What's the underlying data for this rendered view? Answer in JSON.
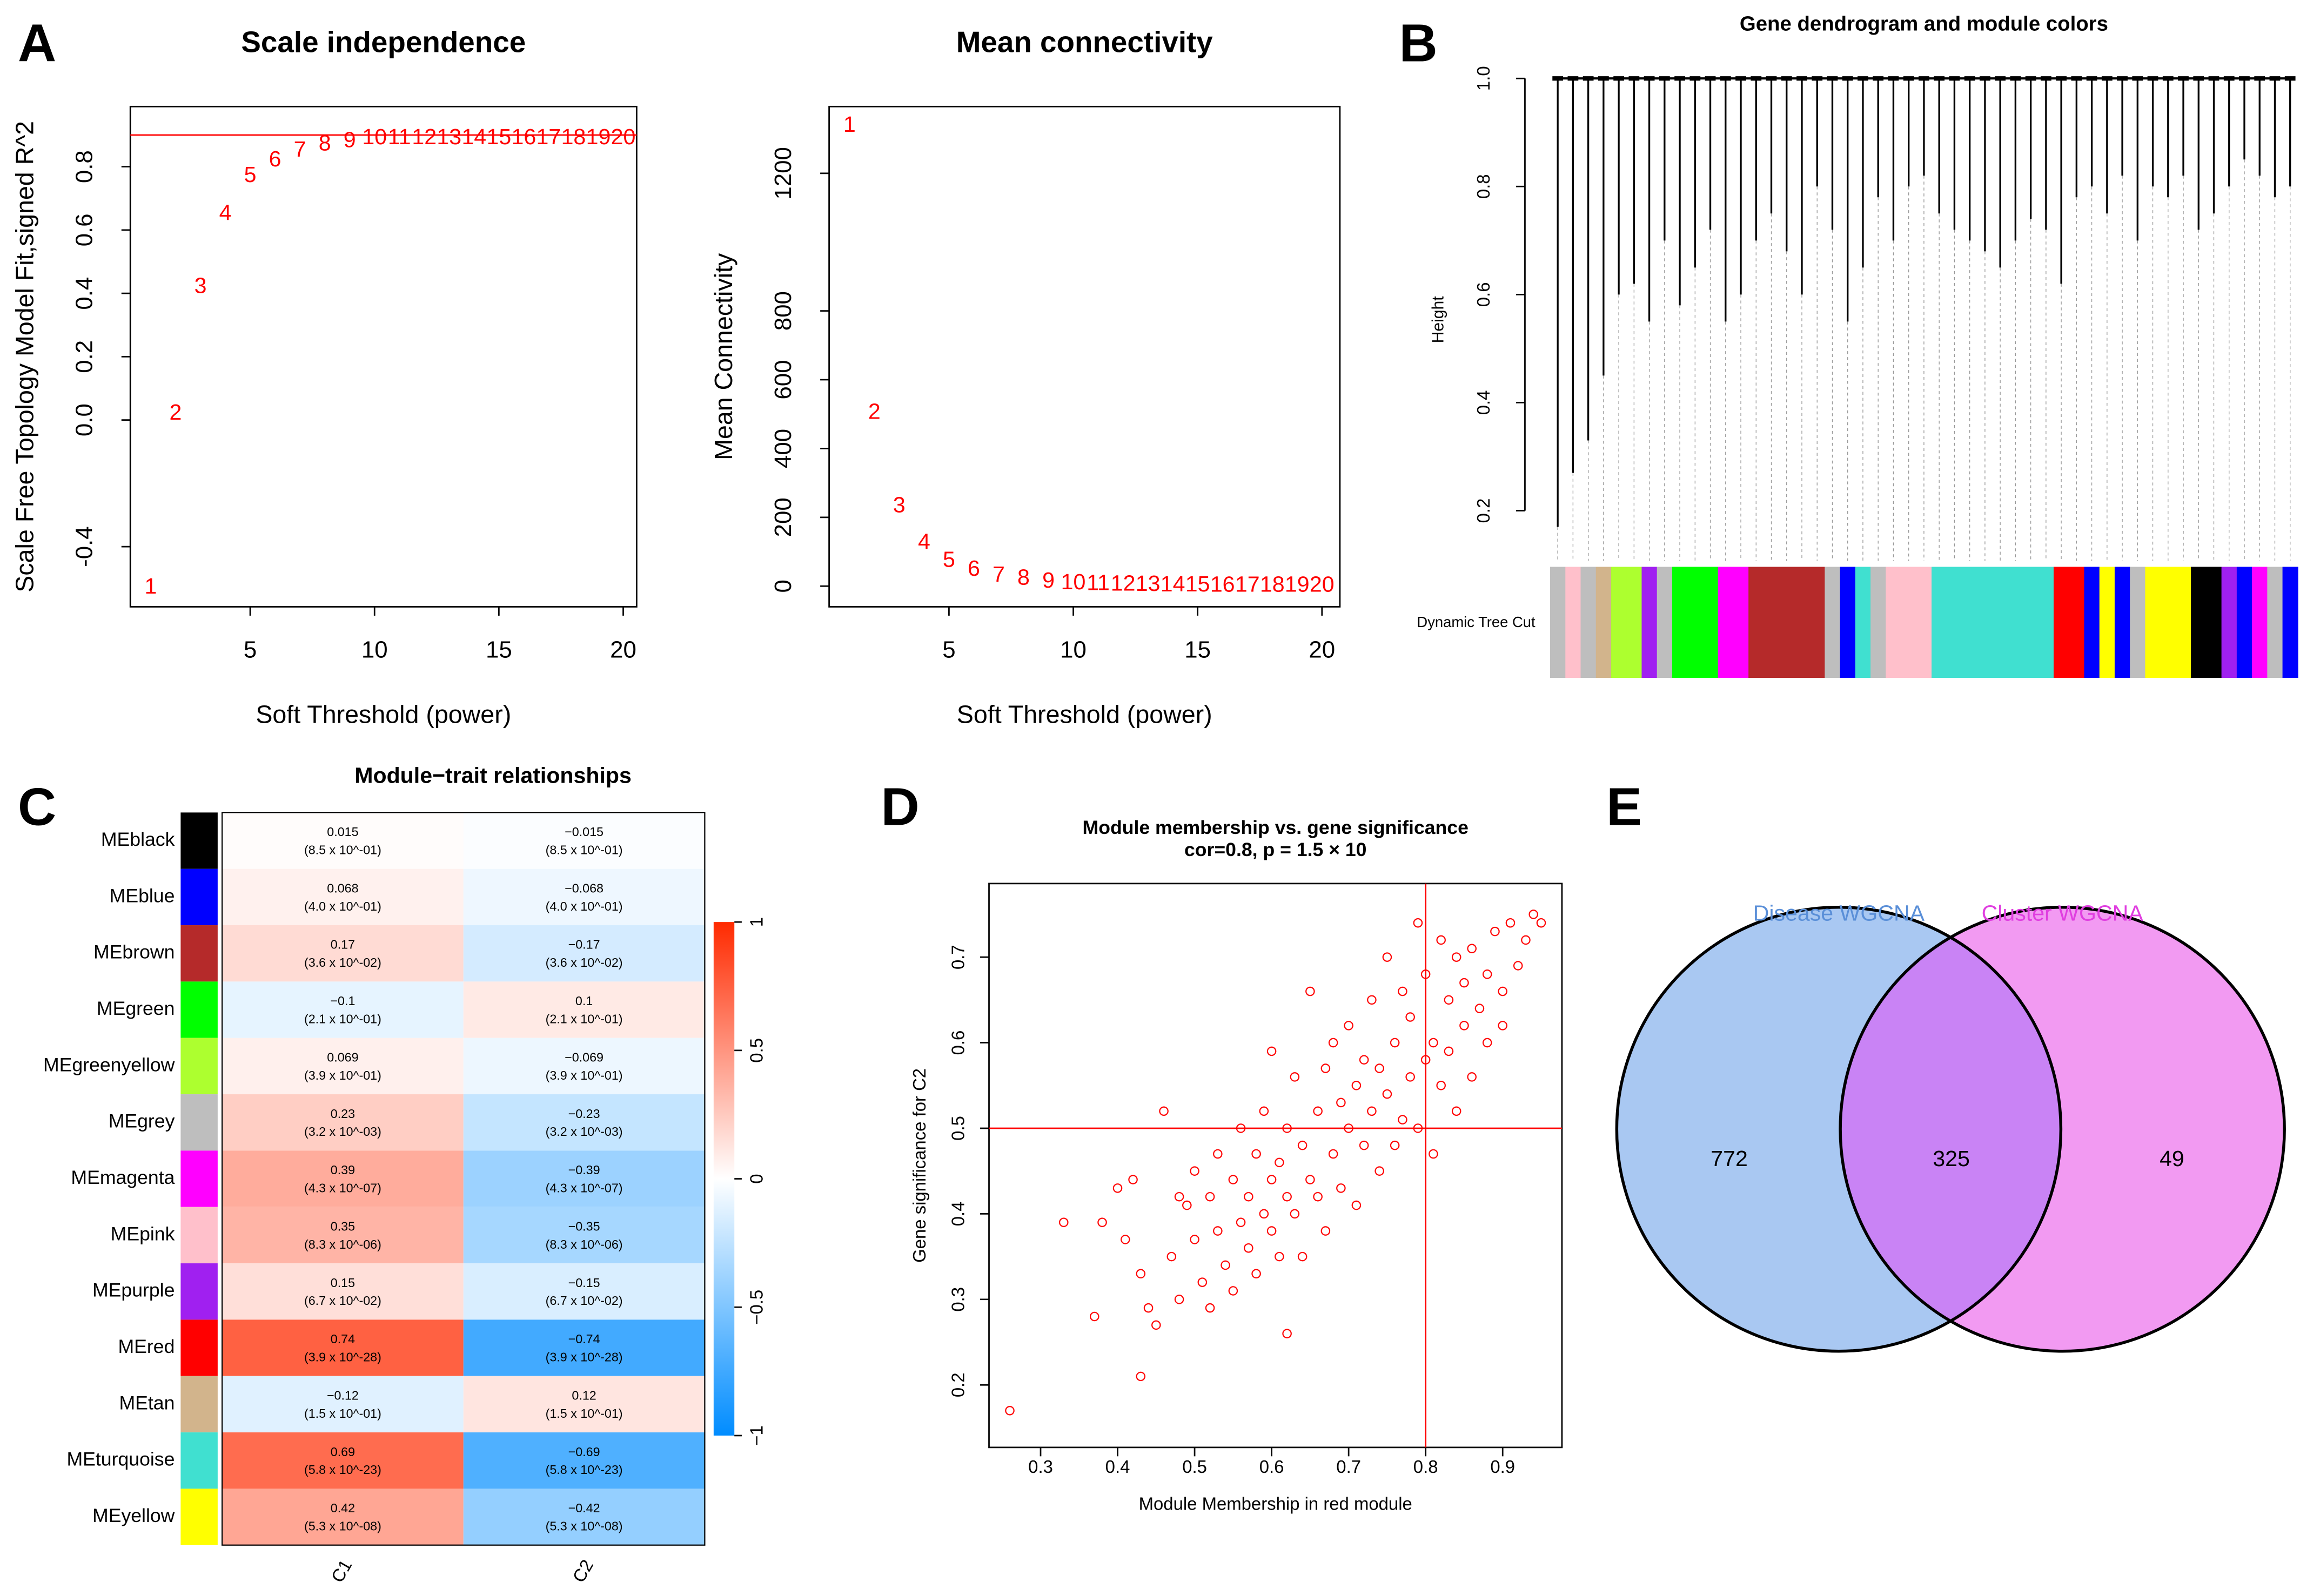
{
  "chart_data": [
    {
      "type": "scatter",
      "panel": "A",
      "title": "Scale independence",
      "x_label": "Soft Threshold (power)",
      "y_label": "Scale Free Topology Model Fit,signed R^2",
      "marker": "label",
      "color": "#ff0000",
      "x": [
        1,
        2,
        3,
        4,
        5,
        6,
        7,
        8,
        9,
        10,
        11,
        12,
        13,
        14,
        15,
        16,
        17,
        18,
        19,
        20
      ],
      "y": [
        -0.53,
        0.02,
        0.42,
        0.65,
        0.77,
        0.82,
        0.85,
        0.87,
        0.88,
        0.89,
        0.89,
        0.89,
        0.89,
        0.89,
        0.89,
        0.89,
        0.89,
        0.89,
        0.89,
        0.89
      ],
      "hline": 0.9,
      "xlim": [
        0.18,
        20.54
      ],
      "ylim": [
        -0.59,
        0.99
      ],
      "xticks": [
        5,
        10,
        15,
        20
      ],
      "yticks": [
        -0.4,
        {
          "value": 0,
          "label": "0.0"
        },
        0.2,
        0.4,
        0.6,
        0.8
      ]
    },
    {
      "type": "scatter",
      "title": "Mean connectivity",
      "x_label": "Soft Threshold (power)",
      "y_label": "Mean Connectivity",
      "marker": "label",
      "color": "#ff0000",
      "x": [
        1,
        2,
        3,
        4,
        5,
        6,
        7,
        8,
        9,
        10,
        11,
        12,
        13,
        14,
        15,
        16,
        17,
        18,
        19,
        20
      ],
      "y": [
        1338,
        503,
        232,
        125,
        73,
        47,
        30,
        21,
        13,
        8,
        6,
        4,
        3,
        2,
        2,
        1,
        1,
        1,
        1,
        1
      ],
      "xlim": [
        0.18,
        20.72
      ],
      "ylim": [
        -60,
        1394
      ],
      "xticks": [
        5,
        10,
        15,
        20
      ],
      "yticks": [
        0,
        200,
        400,
        600,
        800,
        1200
      ]
    },
    {
      "type": "dendrogram",
      "panel": "B",
      "title": "Gene dendrogram and module colors",
      "y_label": "Height",
      "colorbar_label": "Dynamic Tree Cut",
      "ylim": [
        0.107,
        1.0
      ],
      "yticks": [
        0.2,
        0.4,
        0.6,
        0.8,
        {
          "value": 1,
          "label": "1.0"
        }
      ],
      "leaf_heights": [
        0.17,
        0.27,
        0.33,
        0.45,
        0.6,
        0.62,
        0.55,
        0.7,
        0.58,
        0.65,
        0.72,
        0.55,
        0.6,
        0.7,
        0.75,
        0.68,
        0.6,
        0.8,
        0.72,
        0.55,
        0.65,
        0.78,
        0.7,
        0.8,
        0.82,
        0.75,
        0.72,
        0.7,
        0.68,
        0.65,
        0.7,
        0.74,
        0.72,
        0.62,
        0.78,
        0.8,
        0.75,
        0.82,
        0.7,
        0.8,
        0.78,
        0.82,
        0.72,
        0.75,
        0.8,
        0.85,
        0.82,
        0.78,
        0.8
      ],
      "leaf_colors": [
        "#bebebe",
        "#ffc0cb",
        "#bebebe",
        "#d2b48c",
        "#adff2f",
        "#adff2f",
        "#a020f0",
        "#bebebe",
        "#00ff00",
        "#00ff00",
        "#00ff00",
        "#ff00ff",
        "#ff00ff",
        "#b52a2a",
        "#b52a2a",
        "#b52a2a",
        "#b52a2a",
        "#b52a2a",
        "#bebebe",
        "#0000ff",
        "#40e0d0",
        "#bebebe",
        "#ffc0cb",
        "#ffc0cb",
        "#ffc0cb",
        "#40e0d0",
        "#40e0d0",
        "#40e0d0",
        "#40e0d0",
        "#40e0d0",
        "#40e0d0",
        "#40e0d0",
        "#40e0d0",
        "#ff0000",
        "#ff0000",
        "#0000ff",
        "#ffff00",
        "#0000ff",
        "#bebebe",
        "#ffff00",
        "#ffff00",
        "#ffff00",
        "#000000",
        "#000000",
        "#a020f0",
        "#0000ff",
        "#ff00ff",
        "#bebebe",
        "#0000ff"
      ]
    },
    {
      "type": "heatmap",
      "panel": "C",
      "title": "Module−trait relationships",
      "categories": [
        "MEblack",
        "MEblue",
        "MEbrown",
        "MEgreen",
        "MEgreenyellow",
        "MEgrey",
        "MEmagenta",
        "MEpink",
        "MEpurple",
        "MEred",
        "MEtan",
        "MEturquoise",
        "MEyellow"
      ],
      "module_colors": [
        "#000000",
        "#0000ff",
        "#b52a2a",
        "#00ff00",
        "#adff2f",
        "#bebebe",
        "#ff00ff",
        "#ffc0cb",
        "#a020f0",
        "#ff0000",
        "#d2b48c",
        "#40e0d0",
        "#ffff00"
      ],
      "series": [
        {
          "name": "C1",
          "values": [
            0.015,
            0.068,
            0.17,
            -0.1,
            0.069,
            0.23,
            0.39,
            0.35,
            0.15,
            0.74,
            -0.12,
            0.69,
            0.42
          ],
          "value_labels": [
            "0.015",
            "0.068",
            "0.17",
            "−0.1",
            "0.069",
            "0.23",
            "0.39",
            "0.35",
            "0.15",
            "0.74",
            "−0.12",
            "0.69",
            "0.42"
          ],
          "pvalues": [
            0.85,
            0.4,
            0.036,
            0.21,
            0.39,
            0.0032,
            4.3e-07,
            8.3e-06,
            0.067,
            3.9e-28,
            0.15,
            5.8e-23,
            5.3e-08
          ],
          "pvalue_labels": [
            "(8.5 x 10^-01)",
            "(4.0 x 10^-01)",
            "(3.6 x 10^-02)",
            "(2.1 x 10^-01)",
            "(3.9 x 10^-01)",
            "(3.2 x 10^-03)",
            "(4.3 x 10^-07)",
            "(8.3 x 10^-06)",
            "(6.7 x 10^-02)",
            "(3.9 x 10^-28)",
            "(1.5 x 10^-01)",
            "(5.8 x 10^-23)",
            "(5.3 x 10^-08)"
          ]
        },
        {
          "name": "C2",
          "values": [
            -0.015,
            -0.068,
            -0.17,
            0.1,
            -0.069,
            -0.23,
            -0.39,
            -0.35,
            -0.15,
            -0.74,
            0.12,
            -0.69,
            -0.42
          ],
          "value_labels": [
            "−0.015",
            "−0.068",
            "−0.17",
            "0.1",
            "−0.069",
            "−0.23",
            "−0.39",
            "−0.35",
            "−0.15",
            "−0.74",
            "0.12",
            "−0.69",
            "−0.42"
          ],
          "pvalues": [
            0.85,
            0.4,
            0.036,
            0.21,
            0.39,
            0.0032,
            4.3e-07,
            8.3e-06,
            0.067,
            3.9e-28,
            0.15,
            5.8e-23,
            5.3e-08
          ],
          "pvalue_labels": [
            "(8.5 x 10^-01)",
            "(4.0 x 10^-01)",
            "(3.6 x 10^-02)",
            "(2.1 x 10^-01)",
            "(3.9 x 10^-01)",
            "(3.2 x 10^-03)",
            "(4.3 x 10^-07)",
            "(8.3 x 10^-06)",
            "(6.7 x 10^-02)",
            "(3.9 x 10^-28)",
            "(1.5 x 10^-01)",
            "(5.8 x 10^-23)",
            "(5.3 x 10^-08)"
          ]
        }
      ],
      "colorscale": [
        "#008cff",
        "#ffffff",
        "#ff2a00"
      ],
      "zlim": [
        -1,
        1
      ],
      "zticks": [
        {
          "value": -1,
          "label": "−1"
        },
        {
          "value": -0.5,
          "label": "−0.5"
        },
        0,
        0.5,
        1
      ]
    },
    {
      "type": "scatter",
      "panel": "D",
      "title": "Module membership vs. gene significance",
      "subtitle": "cor=0.8, p = 1.5 × 10",
      "x_label": "Module Membership in red module",
      "y_label": "Gene significance for  C2",
      "marker": "circle",
      "color": "#ff0000",
      "x": [
        0.26,
        0.33,
        0.37,
        0.38,
        0.4,
        0.41,
        0.42,
        0.43,
        0.43,
        0.44,
        0.45,
        0.46,
        0.47,
        0.48,
        0.48,
        0.49,
        0.5,
        0.5,
        0.51,
        0.52,
        0.52,
        0.53,
        0.53,
        0.54,
        0.55,
        0.55,
        0.56,
        0.56,
        0.57,
        0.57,
        0.58,
        0.58,
        0.59,
        0.59,
        0.6,
        0.6,
        0.6,
        0.61,
        0.61,
        0.62,
        0.62,
        0.62,
        0.63,
        0.63,
        0.64,
        0.64,
        0.65,
        0.65,
        0.66,
        0.66,
        0.67,
        0.67,
        0.68,
        0.68,
        0.69,
        0.69,
        0.7,
        0.7,
        0.71,
        0.71,
        0.72,
        0.72,
        0.73,
        0.73,
        0.74,
        0.74,
        0.75,
        0.75,
        0.76,
        0.76,
        0.77,
        0.77,
        0.78,
        0.78,
        0.79,
        0.79,
        0.8,
        0.8,
        0.81,
        0.81,
        0.82,
        0.82,
        0.83,
        0.83,
        0.84,
        0.84,
        0.85,
        0.85,
        0.86,
        0.86,
        0.87,
        0.88,
        0.88,
        0.89,
        0.9,
        0.9,
        0.91,
        0.92,
        0.93,
        0.94,
        0.95
      ],
      "y": [
        0.17,
        0.39,
        0.28,
        0.39,
        0.43,
        0.37,
        0.44,
        0.21,
        0.33,
        0.29,
        0.27,
        0.52,
        0.35,
        0.42,
        0.3,
        0.41,
        0.37,
        0.45,
        0.32,
        0.42,
        0.29,
        0.38,
        0.47,
        0.34,
        0.44,
        0.31,
        0.5,
        0.39,
        0.42,
        0.36,
        0.47,
        0.33,
        0.52,
        0.4,
        0.44,
        0.38,
        0.59,
        0.46,
        0.35,
        0.5,
        0.42,
        0.26,
        0.56,
        0.4,
        0.48,
        0.35,
        0.66,
        0.44,
        0.52,
        0.42,
        0.57,
        0.38,
        0.6,
        0.47,
        0.53,
        0.43,
        0.62,
        0.5,
        0.55,
        0.41,
        0.58,
        0.48,
        0.65,
        0.52,
        0.57,
        0.45,
        0.7,
        0.54,
        0.6,
        0.48,
        0.66,
        0.51,
        0.63,
        0.56,
        0.74,
        0.5,
        0.68,
        0.58,
        0.6,
        0.47,
        0.72,
        0.55,
        0.65,
        0.59,
        0.7,
        0.52,
        0.67,
        0.62,
        0.71,
        0.56,
        0.64,
        0.68,
        0.6,
        0.73,
        0.66,
        0.62,
        0.74,
        0.69,
        0.72,
        0.75,
        0.74
      ],
      "vline": 0.8,
      "hline": 0.5,
      "xlim": [
        0.233,
        0.977
      ],
      "ylim": [
        0.127,
        0.786
      ],
      "xticks": [
        0.3,
        0.4,
        0.5,
        0.6,
        0.7,
        0.8,
        0.9
      ],
      "yticks": [
        0.2,
        0.3,
        0.4,
        0.5,
        0.6,
        0.7
      ]
    },
    {
      "type": "venn",
      "panel": "E",
      "sets": [
        {
          "name": "Disease WGCNA",
          "color": "#a9c8f2",
          "label_color": "#5a8fd8"
        },
        {
          "name": "Cluster WGCNA",
          "color": "#f29af2",
          "label_color": "#e03ee0"
        }
      ],
      "overlap_color": "#c983f5",
      "values": [
        772,
        325,
        49
      ]
    }
  ]
}
